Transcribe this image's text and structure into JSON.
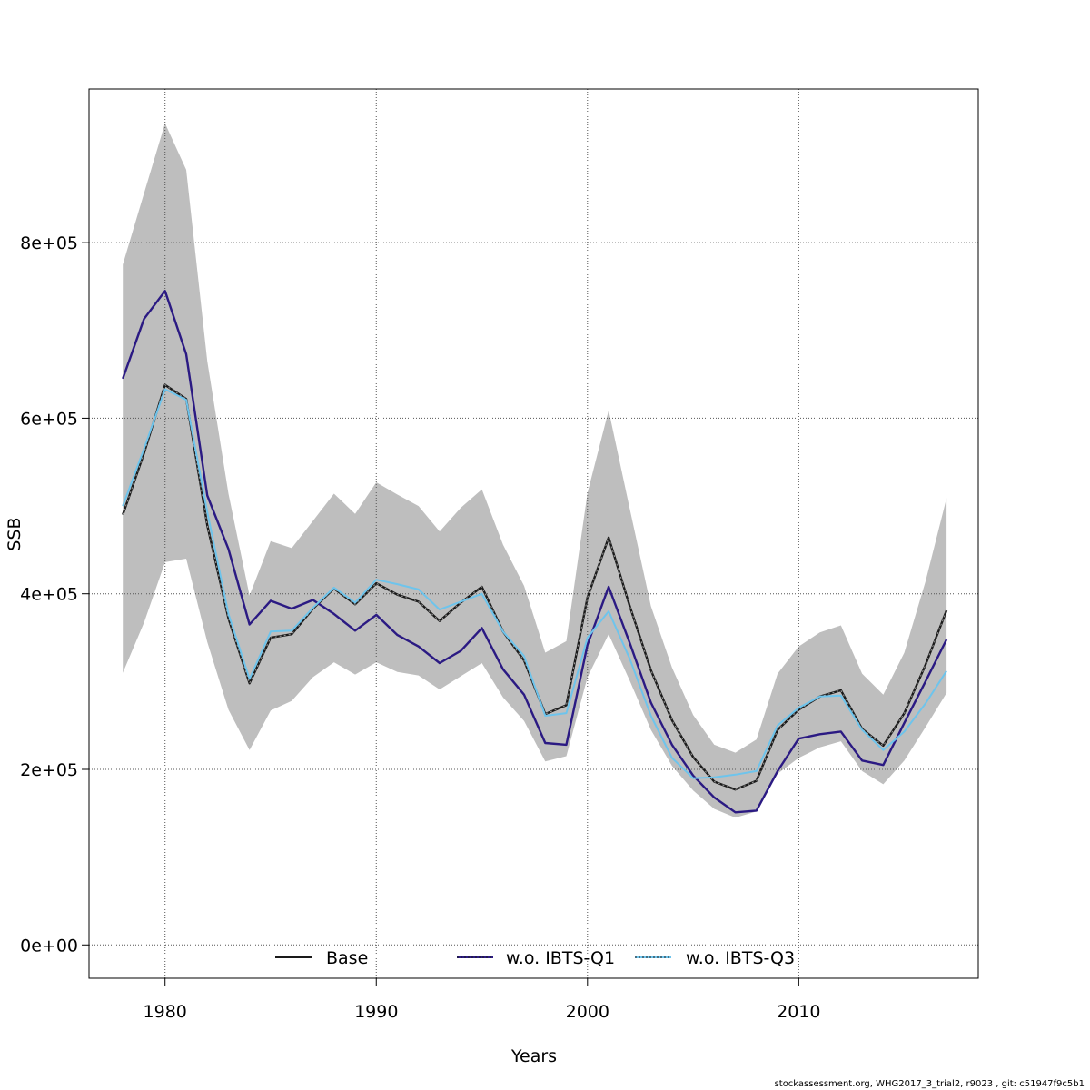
{
  "chart_data": {
    "type": "line",
    "xlabel": "Years",
    "ylabel": "SSB",
    "xlim": [
      1976.4,
      2018.5
    ],
    "ylim": [
      -38000,
      975000
    ],
    "x_ticks": [
      1980,
      1990,
      2000,
      2010
    ],
    "x_tick_labels": [
      "1980",
      "1990",
      "2000",
      "2010"
    ],
    "y_ticks": [
      0,
      200000,
      400000,
      600000,
      800000
    ],
    "y_tick_labels": [
      "0e+00",
      "2e+05",
      "4e+05",
      "6e+05",
      "8e+05"
    ],
    "grid": true,
    "legend_position": "bottom",
    "x": [
      1978,
      1979,
      1980,
      1981,
      1982,
      1983,
      1984,
      1985,
      1986,
      1987,
      1988,
      1989,
      1990,
      1991,
      1992,
      1993,
      1994,
      1995,
      1996,
      1997,
      1998,
      1999,
      2000,
      2001,
      2002,
      2003,
      2004,
      2005,
      2006,
      2007,
      2008,
      2009,
      2010,
      2011,
      2012,
      2013,
      2014,
      2015,
      2016,
      2017
    ],
    "band": {
      "name": "Base confidence interval",
      "color": "#bebebe",
      "upper": [
        775000,
        856000,
        936000,
        883000,
        665000,
        514000,
        398000,
        460000,
        452000,
        483000,
        514000,
        491000,
        527000,
        513000,
        500000,
        471000,
        498000,
        519000,
        456000,
        409000,
        333000,
        346000,
        515000,
        609000,
        497000,
        386000,
        316000,
        262000,
        228000,
        219000,
        234000,
        309000,
        340000,
        356000,
        364000,
        309000,
        285000,
        333000,
        414000,
        509000
      ],
      "lower": [
        310000,
        367000,
        436000,
        440000,
        345000,
        268000,
        222000,
        267000,
        278000,
        305000,
        322000,
        308000,
        322000,
        311000,
        307000,
        291000,
        306000,
        321000,
        282000,
        255000,
        209000,
        215000,
        305000,
        354000,
        301000,
        245000,
        204000,
        176000,
        155000,
        145000,
        152000,
        195000,
        213000,
        225000,
        232000,
        198000,
        183000,
        210000,
        248000,
        287000
      ]
    },
    "series": [
      {
        "name": "Base",
        "color": "#1a1a1a",
        "values": [
          490000,
          560000,
          638000,
          622000,
          478000,
          372000,
          298000,
          350000,
          354000,
          383000,
          406000,
          388000,
          412000,
          399000,
          391000,
          369000,
          390000,
          408000,
          357000,
          324000,
          263000,
          273000,
          396000,
          464000,
          386000,
          313000,
          256000,
          214000,
          186000,
          177000,
          187000,
          245000,
          268000,
          283000,
          290000,
          246000,
          227000,
          264000,
          319000,
          381000
        ]
      },
      {
        "name": "w.o. IBTS-Q1",
        "color": "#2b1a83",
        "values": [
          645000,
          713000,
          745000,
          673000,
          512000,
          451000,
          365000,
          392000,
          383000,
          393000,
          377000,
          358000,
          376000,
          353000,
          340000,
          321000,
          335000,
          361000,
          314000,
          285000,
          230000,
          228000,
          342000,
          408000,
          344000,
          276000,
          228000,
          193000,
          168000,
          151000,
          153000,
          198000,
          235000,
          240000,
          243000,
          210000,
          205000,
          253000,
          300000,
          348000
        ]
      },
      {
        "name": "w.o. IBTS-Q3",
        "color": "#6ec4ec",
        "values": [
          500000,
          565000,
          633000,
          621000,
          493000,
          377000,
          303000,
          357000,
          358000,
          384000,
          407000,
          390000,
          416000,
          411000,
          405000,
          382000,
          391000,
          400000,
          357000,
          329000,
          261000,
          264000,
          350000,
          380000,
          326000,
          261000,
          213000,
          190000,
          191000,
          194000,
          198000,
          250000,
          270000,
          283000,
          284000,
          245000,
          222000,
          243000,
          275000,
          312000
        ]
      }
    ]
  },
  "footer": {
    "credit": "stockassessment.org, WHG2017_3_trial2, r9023 , git: c51947f9c5b1"
  }
}
